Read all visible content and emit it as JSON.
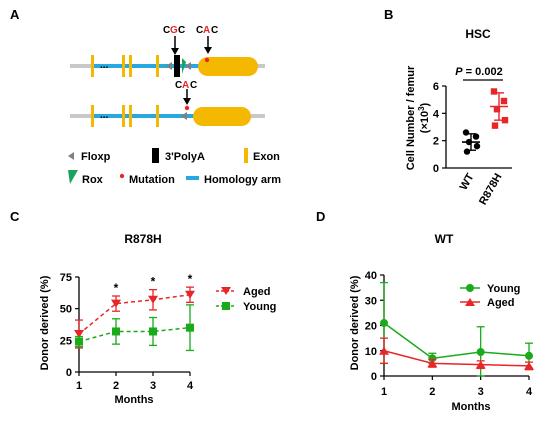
{
  "panels": {
    "a": "A",
    "b": "B",
    "c": "C",
    "d": "D"
  },
  "schematic": {
    "codon_top_left": [
      "C",
      "G",
      "C"
    ],
    "codon_top_right": [
      "C",
      "A",
      "C"
    ],
    "codon_bottom": [
      "C",
      "A",
      "C"
    ],
    "dots": "...",
    "legend": {
      "floxp": "Floxp",
      "polya": "3'PolyA",
      "exon": "Exon",
      "rox": "Rox",
      "mutation": "Mutation",
      "homology": "Homology arm"
    },
    "colors": {
      "backbone": "#c8c8c8",
      "homology": "#29a8e0",
      "exon": "#f5b800",
      "floxp": "#808080",
      "polya": "#000000",
      "rox": "#1aa260",
      "mutation": "#e8262a"
    }
  },
  "chart_data": [
    {
      "id": "hsc",
      "type": "scatter",
      "title": "HSC",
      "ylabel_main": "Cell Number / femur",
      "ylabel_unit": "(×10",
      "ylabel_sup": "3",
      "ylabel_close": ")",
      "pvalue_label": "P",
      "pvalue_text": " = 0.002",
      "ylim": [
        0,
        6
      ],
      "yticks": [
        "0",
        "2",
        "4",
        "6"
      ],
      "categories": [
        "WT",
        "R878H"
      ],
      "colors": [
        "#000000",
        "#e8262a"
      ],
      "points": [
        [
          2.6,
          2.3,
          1.9,
          1.6,
          1.2
        ],
        [
          5.6,
          4.9,
          4.3,
          3.5,
          3.1
        ]
      ],
      "mean": [
        1.9,
        4.5
      ],
      "sd": [
        0.6,
        1.0
      ]
    },
    {
      "id": "r878h",
      "type": "line",
      "title": "R878H",
      "xlabel": "Months",
      "ylabel": "Donor derived (%)",
      "x": [
        1,
        2,
        3,
        4
      ],
      "xticks": [
        "1",
        "2",
        "3",
        "4"
      ],
      "ylim": [
        0,
        75
      ],
      "yticks": [
        "0",
        "25",
        "50",
        "75"
      ],
      "series": [
        {
          "name": "Aged",
          "color": "#e8262a",
          "marker": "triangle-down",
          "values": [
            30,
            54,
            57,
            61
          ],
          "err": [
            11,
            6,
            8,
            6
          ]
        },
        {
          "name": "Young",
          "color": "#1aaa1a",
          "marker": "square",
          "values": [
            24,
            32,
            32,
            35
          ],
          "err": [
            4,
            10,
            11,
            18
          ]
        }
      ],
      "significance": [
        "",
        "*",
        "*",
        "*"
      ]
    },
    {
      "id": "wt",
      "type": "line",
      "title": "WT",
      "xlabel": "Months",
      "ylabel": "Donor derived (%)",
      "x": [
        1,
        2,
        3,
        4
      ],
      "xticks": [
        "1",
        "2",
        "3",
        "4"
      ],
      "ylim": [
        0,
        40
      ],
      "yticks": [
        "0",
        "10",
        "20",
        "30",
        "40"
      ],
      "series": [
        {
          "name": "Young",
          "color": "#1aaa1a",
          "marker": "circle",
          "values": [
            21,
            7,
            9.5,
            8
          ],
          "err": [
            16,
            2,
            10,
            5
          ]
        },
        {
          "name": "Aged",
          "color": "#e8262a",
          "marker": "triangle-up",
          "values": [
            10,
            5,
            4.5,
            4
          ],
          "err": [
            5,
            1.5,
            1.5,
            1.5
          ]
        }
      ]
    }
  ]
}
